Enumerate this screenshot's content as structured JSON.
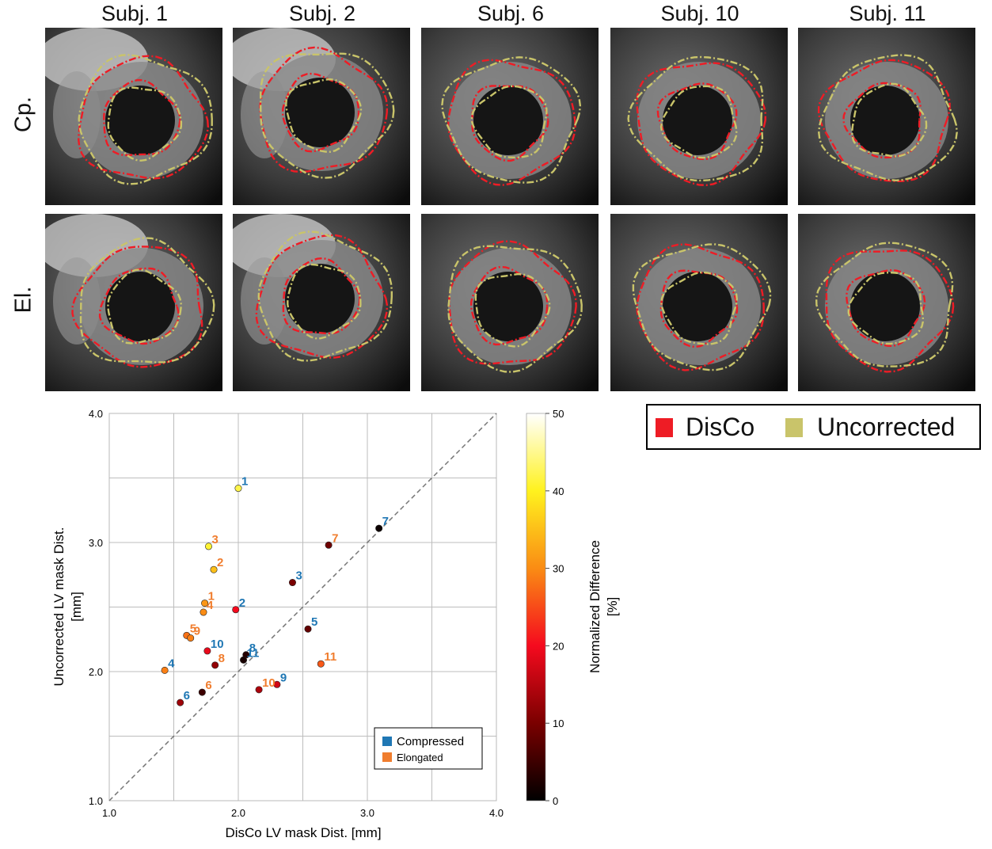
{
  "columns": [
    "Subj. 1",
    "Subj. 2",
    "Subj. 6",
    "Subj. 10",
    "Subj. 11"
  ],
  "rows": [
    "Cp.",
    "El."
  ],
  "legend": {
    "items": [
      {
        "label": "DisCo",
        "color": "#ee1c25"
      },
      {
        "label": "Uncorrected",
        "color": "#c9c46a"
      }
    ]
  },
  "chart_data": {
    "type": "scatter",
    "xlabel": "DisCo LV mask Dist. [mm]",
    "ylabel": "Uncorrected LV mask Dist. [mm]",
    "xlim": [
      1.0,
      4.0
    ],
    "ylim": [
      1.0,
      4.0
    ],
    "xticks": [
      "1.0",
      "2.0",
      "3.0",
      "4.0"
    ],
    "yticks": [
      "1.0",
      "2.0",
      "3.0",
      "4.0"
    ],
    "grid": true,
    "diagonal": true,
    "colorbar": {
      "label": "Normalized Difference [%]",
      "range": [
        0,
        50
      ],
      "ticks": [
        "0",
        "10",
        "20",
        "30",
        "40",
        "50"
      ]
    },
    "series": [
      {
        "name": "Compressed",
        "label_color": "#1f77b4",
        "points": [
          {
            "label": "1",
            "x": 2.0,
            "y": 3.42,
            "diff": 42
          },
          {
            "label": "2",
            "x": 1.98,
            "y": 2.48,
            "diff": 20
          },
          {
            "label": "3",
            "x": 2.42,
            "y": 2.69,
            "diff": 10
          },
          {
            "label": "4",
            "x": 1.43,
            "y": 2.01,
            "diff": 29
          },
          {
            "label": "5",
            "x": 2.54,
            "y": 2.33,
            "diff": 8
          },
          {
            "label": "6",
            "x": 1.55,
            "y": 1.76,
            "diff": 13
          },
          {
            "label": "7",
            "x": 3.09,
            "y": 3.11,
            "diff": 1
          },
          {
            "label": "8",
            "x": 2.06,
            "y": 2.13,
            "diff": 3
          },
          {
            "label": "9",
            "x": 2.3,
            "y": 1.9,
            "diff": 17
          },
          {
            "label": "10",
            "x": 1.76,
            "y": 2.16,
            "diff": 19
          },
          {
            "label": "11",
            "x": 2.04,
            "y": 2.09,
            "diff": 2
          }
        ]
      },
      {
        "name": "Elongated",
        "label_color": "#f07d2e",
        "points": [
          {
            "label": "1",
            "x": 1.74,
            "y": 2.53,
            "diff": 31
          },
          {
            "label": "2",
            "x": 1.81,
            "y": 2.79,
            "diff": 35
          },
          {
            "label": "3",
            "x": 1.77,
            "y": 2.97,
            "diff": 41
          },
          {
            "label": "4",
            "x": 1.73,
            "y": 2.46,
            "diff": 30
          },
          {
            "label": "5",
            "x": 1.6,
            "y": 2.28,
            "diff": 28
          },
          {
            "label": "6",
            "x": 1.72,
            "y": 1.84,
            "diff": 5
          },
          {
            "label": "7",
            "x": 2.7,
            "y": 2.98,
            "diff": 9
          },
          {
            "label": "8",
            "x": 1.82,
            "y": 2.05,
            "diff": 12
          },
          {
            "label": "9",
            "x": 1.63,
            "y": 2.26,
            "diff": 29
          },
          {
            "label": "10",
            "x": 2.16,
            "y": 1.86,
            "diff": 14
          },
          {
            "label": "11",
            "x": 2.64,
            "y": 2.06,
            "diff": 26
          }
        ]
      }
    ]
  }
}
